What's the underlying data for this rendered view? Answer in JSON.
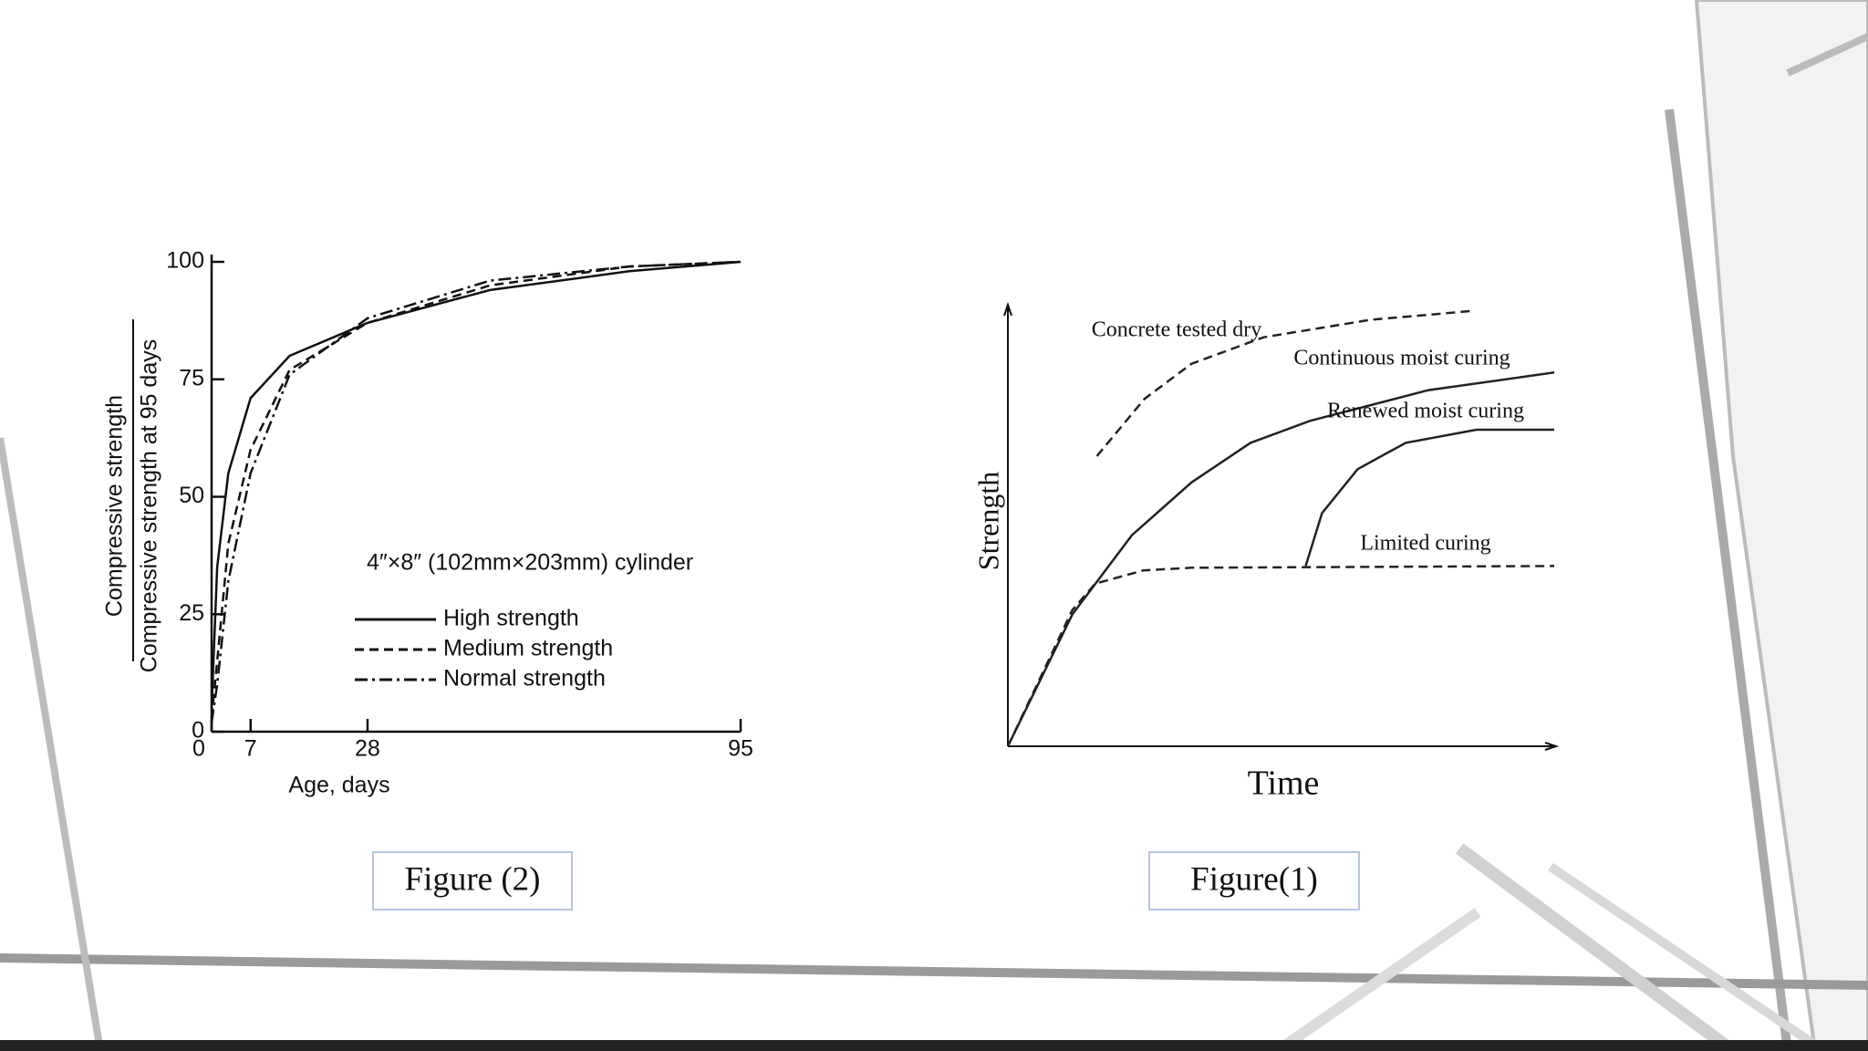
{
  "chart_data": [
    {
      "type": "line",
      "annotation": "4″×8″ (102mm×203mm) cylinder",
      "ylabel": [
        "Compressive strength",
        "Compressive strength at 95 days"
      ],
      "xlabel": "Age, days",
      "x": [
        0,
        1,
        3,
        7,
        14,
        28,
        50,
        75,
        95
      ],
      "series": [
        {
          "name": "High strength",
          "color": "#111111",
          "dash": "solid",
          "values": [
            5,
            35,
            55,
            71,
            80,
            87,
            94,
            98,
            100
          ]
        },
        {
          "name": "Medium strength",
          "color": "#111111",
          "dash": "dashed",
          "values": [
            3,
            15,
            40,
            60,
            77,
            87,
            95,
            99,
            100
          ]
        },
        {
          "name": "Normal strength",
          "color": "#111111",
          "dash": "dashdot",
          "values": [
            2,
            10,
            32,
            55,
            76,
            88,
            96,
            99,
            100
          ]
        }
      ],
      "xlim": [
        0,
        95
      ],
      "ylim": [
        0,
        100
      ],
      "xticks": [
        0,
        7,
        28,
        95
      ],
      "yticks": [
        0,
        25,
        50,
        75,
        100
      ],
      "caption": "Figure (2)"
    },
    {
      "type": "line",
      "xlabel": "Time",
      "ylabel": "Strength",
      "series": [
        {
          "name": "Concrete tested dry",
          "color": "#222222",
          "dash": "dashed",
          "x": [
            16.3,
            25,
            33.6,
            46.8,
            66.4,
            85
          ],
          "values": [
            66,
            79,
            87,
            93,
            97,
            99
          ]
        },
        {
          "name": "Continuous moist curing",
          "color": "#222222",
          "dash": "solid",
          "x": [
            0,
            11.8,
            22.7,
            33.6,
            44.4,
            55.3,
            77,
            100
          ],
          "values": [
            0,
            30,
            48,
            60,
            69,
            74,
            81,
            85
          ]
        },
        {
          "name": "Renewed moist curing",
          "color": "#222222",
          "dash": "solid",
          "x": [
            54.5,
            57.5,
            64,
            72.8,
            85.8,
            100
          ],
          "values": [
            41,
            53,
            63,
            69,
            72,
            72
          ]
        },
        {
          "name": "Limited curing",
          "color": "#222222",
          "dash": "dashed",
          "x": [
            0,
            11.8,
            16,
            24.8,
            33.6,
            100
          ],
          "values": [
            0,
            31,
            37,
            40,
            40.6,
            41
          ]
        }
      ],
      "xlim": [
        0,
        100
      ],
      "ylim": [
        0,
        100
      ],
      "caption": "Figure(1)"
    }
  ]
}
